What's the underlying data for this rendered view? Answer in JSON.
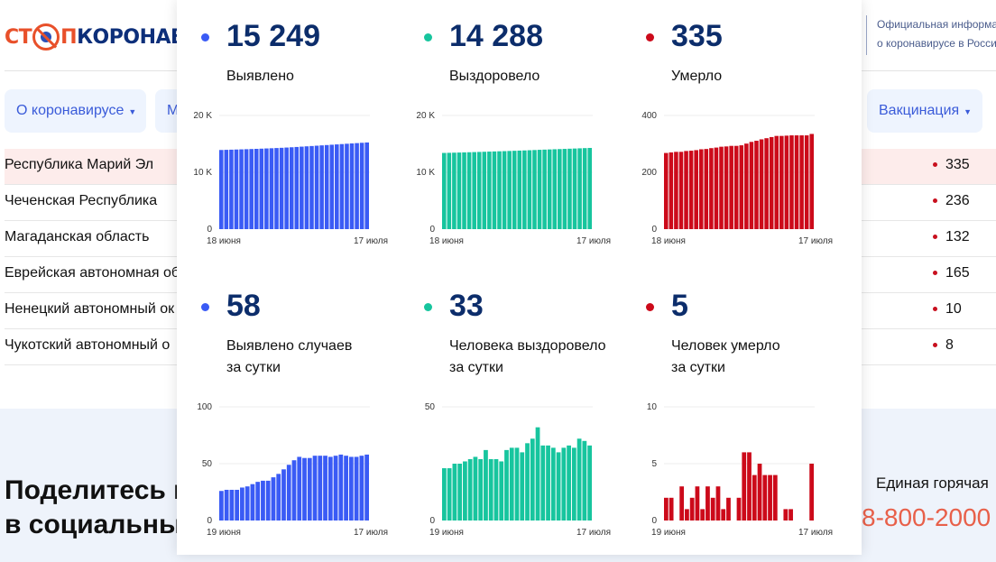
{
  "header": {
    "logo_part1": "СТ",
    "logo_part2": "П",
    "logo_part3": "КОРОНАВИ",
    "official_line1": "Официальная информа",
    "official_line2": "о коронавирусе в Росси"
  },
  "nav": [
    {
      "label": "О коронавирусе"
    },
    {
      "label": "М"
    },
    {
      "label": "Вакцинация"
    }
  ],
  "table": {
    "rows": [
      {
        "region": "Республика Марий Эл",
        "value": "335",
        "highlighted": true
      },
      {
        "region": "Чеченская Республика",
        "value": "236"
      },
      {
        "region": "Магаданская область",
        "value": "132"
      },
      {
        "region": "Еврейская автономная об",
        "value": "165"
      },
      {
        "region": "Ненецкий автономный ок",
        "value": "10"
      },
      {
        "region": "Чукотский автономный о",
        "value": "8"
      }
    ]
  },
  "footer": {
    "share_line1": "Поделитесь в",
    "share_line2": "в социальны",
    "hotline": "Единая горячая",
    "phone": "8-800-2000"
  },
  "colors": {
    "detected": "#3a5bf5",
    "recovered": "#17c59e",
    "died": "#cc0a1a"
  },
  "stats": [
    {
      "value": "15 249",
      "label1": "Выявлено",
      "label2": "",
      "color": "#3a5bf5"
    },
    {
      "value": "14 288",
      "label1": "Выздоровело",
      "label2": "",
      "color": "#17c59e"
    },
    {
      "value": "335",
      "label1": "Умерло",
      "label2": "",
      "color": "#cc0a1a"
    },
    {
      "value": "58",
      "label1": "Выявлено случаев",
      "label2": "за сутки",
      "color": "#3a5bf5"
    },
    {
      "value": "33",
      "label1": "Человека выздоровело",
      "label2": "за сутки",
      "color": "#17c59e"
    },
    {
      "value": "5",
      "label1": "Человек умерло",
      "label2": "за сутки",
      "color": "#cc0a1a"
    }
  ],
  "chart_data": [
    {
      "type": "bar",
      "color": "#3a5bf5",
      "ylim": [
        0,
        20000
      ],
      "yticks": [
        "0",
        "10 K",
        "20 K"
      ],
      "ytick_values": [
        0,
        10000,
        20000
      ],
      "xlabels": [
        "18 июня",
        "17 июля"
      ],
      "values": [
        13929,
        13955,
        13982,
        14009,
        14036,
        14065,
        14095,
        14127,
        14161,
        14196,
        14231,
        14269,
        14310,
        14355,
        14404,
        14457,
        14513,
        14568,
        14623,
        14680,
        14737,
        14794,
        14850,
        14907,
        14965,
        15022,
        15078,
        15134,
        15191,
        15249
      ]
    },
    {
      "type": "bar",
      "color": "#17c59e",
      "ylim": [
        0,
        20000
      ],
      "yticks": [
        "0",
        "10 K",
        "20 K"
      ],
      "ytick_values": [
        0,
        10000,
        20000
      ],
      "xlabels": [
        "18 июня",
        "17 июля"
      ],
      "values": [
        13408,
        13431,
        13454,
        13479,
        13504,
        13530,
        13557,
        13585,
        13612,
        13643,
        13670,
        13697,
        13723,
        13754,
        13786,
        13818,
        13848,
        13882,
        13918,
        13959,
        13992,
        14025,
        14057,
        14087,
        14119,
        14152,
        14184,
        14220,
        14255,
        14288
      ]
    },
    {
      "type": "bar",
      "color": "#cc0a1a",
      "ylim": [
        0,
        400
      ],
      "yticks": [
        "0",
        "200",
        "400"
      ],
      "ytick_values": [
        0,
        200,
        400
      ],
      "xlabels": [
        "18 июня",
        "17 июля"
      ],
      "values": [
        268,
        270,
        272,
        272,
        275,
        276,
        278,
        281,
        282,
        285,
        287,
        290,
        291,
        293,
        293,
        295,
        301,
        307,
        311,
        316,
        320,
        324,
        328,
        328,
        329,
        330,
        330,
        330,
        330,
        335
      ]
    },
    {
      "type": "bar",
      "color": "#3a5bf5",
      "ylim": [
        0,
        100
      ],
      "yticks": [
        "0",
        "50",
        "100"
      ],
      "ytick_values": [
        0,
        50,
        100
      ],
      "xlabels": [
        "19 июня",
        "17 июля"
      ],
      "values": [
        26,
        27,
        27,
        27,
        29,
        30,
        32,
        34,
        35,
        35,
        38,
        41,
        45,
        49,
        53,
        56,
        55,
        55,
        57,
        57,
        57,
        56,
        57,
        58,
        57,
        56,
        56,
        57,
        58
      ]
    },
    {
      "type": "bar",
      "color": "#17c59e",
      "ylim": [
        0,
        50
      ],
      "yticks": [
        "0",
        "50"
      ],
      "ytick_values": [
        0,
        50
      ],
      "xlabels": [
        "19 июня",
        "17 июля"
      ],
      "values": [
        23,
        23,
        25,
        25,
        26,
        27,
        28,
        27,
        31,
        27,
        27,
        26,
        31,
        32,
        32,
        30,
        34,
        36,
        41,
        33,
        33,
        32,
        30,
        32,
        33,
        32,
        36,
        35,
        33
      ]
    },
    {
      "type": "bar",
      "color": "#cc0a1a",
      "ylim": [
        0,
        10
      ],
      "yticks": [
        "0",
        "5",
        "10"
      ],
      "ytick_values": [
        0,
        5,
        10
      ],
      "xlabels": [
        "19 июня",
        "17 июля"
      ],
      "values": [
        2,
        2,
        0,
        3,
        1,
        2,
        3,
        1,
        3,
        2,
        3,
        1,
        2,
        0,
        2,
        6,
        6,
        4,
        5,
        4,
        4,
        4,
        0,
        1,
        1,
        0,
        0,
        0,
        5
      ]
    }
  ]
}
